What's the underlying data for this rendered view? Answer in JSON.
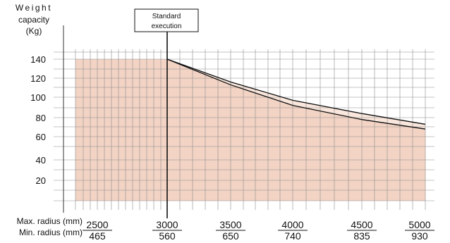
{
  "chart_data": {
    "type": "area",
    "ylabel": [
      "Weight",
      "capacity",
      "(Kg)"
    ],
    "xlabel_max": "Max. radius (mm)",
    "xlabel_min": "Min. radius (mm)",
    "x_ticks": [
      {
        "max": "2500",
        "min": "465",
        "value": 2500
      },
      {
        "max": "3000",
        "min": "560",
        "value": 3000
      },
      {
        "max": "3500",
        "min": "650",
        "value": 3500
      },
      {
        "max": "4000",
        "min": "740",
        "value": 4000
      },
      {
        "max": "4500",
        "min": "835",
        "value": 4500
      },
      {
        "max": "5000",
        "min": "930",
        "value": 5000
      }
    ],
    "y_ticks": [
      {
        "label": "140",
        "value": 140
      },
      {
        "label": "120",
        "value": 120
      },
      {
        "label": "100",
        "value": 100
      },
      {
        "label": "80",
        "value": 80
      },
      {
        "label": "60",
        "value": 60
      },
      {
        "label": "40",
        "value": 40
      },
      {
        "label": "20",
        "value": 20
      }
    ],
    "xlim": [
      2100,
      5000
    ],
    "ylim": [
      0,
      140
    ],
    "annotation": {
      "lines": [
        "Standard",
        "execution"
      ],
      "x": 3000
    },
    "series": [
      {
        "x": [
          2100,
          3000,
          3500,
          4000,
          4500,
          5000
        ],
        "y": [
          140,
          140,
          116,
          97,
          84,
          73
        ]
      },
      {
        "x": [
          2100,
          3000,
          3500,
          4000,
          4500,
          5000
        ],
        "y": [
          140,
          140,
          113,
          92,
          78,
          68
        ]
      }
    ],
    "grid": true,
    "colors": {
      "fill": "#f2d3c4",
      "band": "#f9e6dc",
      "grid": "#8c8c8c",
      "line": "#111111"
    }
  }
}
